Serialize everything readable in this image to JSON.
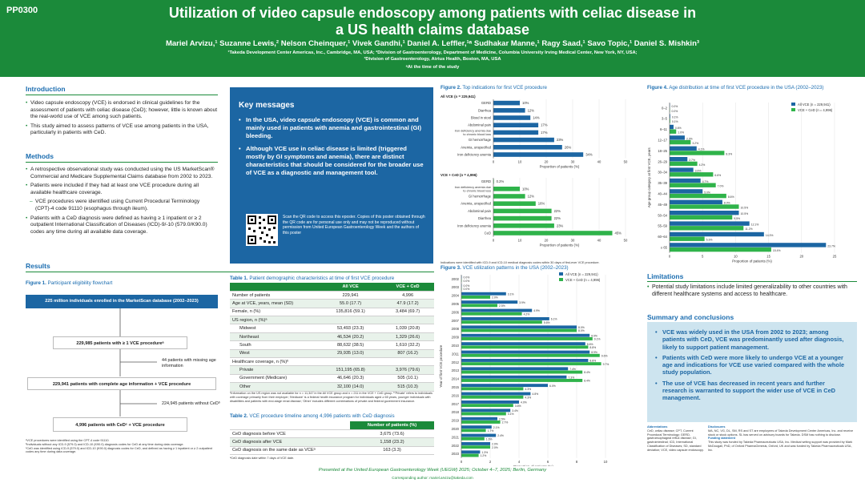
{
  "header": {
    "poster_id": "PP0300",
    "title_line1": "Utilization of video capsule endoscopy among patients with celiac disease in",
    "title_line2": "a US health claims database",
    "authors": "Mariel Arvizu,¹ Suzanne Lewis,² Nelson Cheinquer,¹ Vivek Gandhi,¹ Daniel A. Leffler,¹ᵃ Sudhakar Manne,¹ Ragy Saad,¹ Savo Topic,¹ Daniel S. Mishkin³",
    "aff1": "¹Takeda Development Center Americas, Inc., Cambridge, MA, USA; ²Division of Gastroenterology, Department of Medicine, Columbia University Irving Medical Center, New York, NY, USA;",
    "aff2": "³Division of Gastroenterology, Atrius Health, Boston, MA, USA",
    "aff3": "ᵃAt the time of the study"
  },
  "intro": {
    "heading": "Introduction",
    "b1": "Video capsule endoscopy (VCE) is endorsed in clinical guidelines for the assessment of patients with celiac disease (CeD); however, little is known about the real-world use of VCE among such patients.",
    "b2": "This study aimed to assess patterns of VCE use among patients in the USA, particularly in patients with CeD."
  },
  "methods": {
    "heading": "Methods",
    "b1": "A retrospective observational study was conducted using the US MarketScan® Commercial and Medicare Supplemental Claims database from 2002 to 2023.",
    "b2": "Patients were included if they had at least one VCE procedure during all available healthcare coverage.",
    "b3": "VCE procedures were identified using Current Procedural Terminology (CPT)-4 code 91110 (esophagus through ileum).",
    "b4": "Patients with a CeD diagnosis were defined as having ≥ 1 inpatient or ≥ 2 outpatient International Classification of Diseases (ICD)-9/-10 (579.0/K90.0) codes any time during all available data coverage."
  },
  "results": {
    "heading": "Results",
    "fig1_label": "Figure 1.",
    "fig1_title": "Participant eligibility flowchart",
    "box1": "225 million individuals enrolled in the MarketScan database (2002–2023)",
    "box2": "229,985 patients with ≥ 1 VCE procedureᵃ",
    "side1": "44 patients with missing age information",
    "box3": "229,941 patients with complete age information + VCE procedure",
    "side2": "224,945 patients without CeDᵇ",
    "box4": "4,996 patients with CeDᶜ + VCE procedure",
    "fn1": "ᵃVCE procedures were identified using the CPT-4 code 91110.",
    "fn2": "ᵇIndividuals without any ICD-9 (579.0) and ICD-10 (K90.0) diagnosis codes for CeD at any time during data coverage.",
    "fn3": "ᶜCeD was identified using ICD-9 (579.0) and ICD-10 (K90.0) diagnosis codes for CeD, and defined as having ≥ 1 inpatient or ≥ 2 outpatient codes any time during data coverage."
  },
  "key": {
    "heading": "Key messages",
    "b1": "In the USA, video capsule endoscopy (VCE) is common and mainly used in patients with anemia and gastrointestinal (GI) bleeding.",
    "b2": "Although VCE use in celiac disease is limited (triggered mostly by GI symptoms and anemia), there are distinct characteristics that should be considered for the broader use of VCE as a diagnostic and management tool.",
    "qr_text": "Scan the QR code to access this eposter. Copies of this poster obtained through the QR code are for personal use only and may not be reproduced without permission from United European Gastroenterology Week and the authors of this poster"
  },
  "table1": {
    "label": "Table 1.",
    "title": "Patient demographic characteristics at time of first VCE procedure",
    "headers": [
      "",
      "All VCE",
      "VCE + CeD"
    ],
    "rows": [
      [
        "Number of patients",
        "229,941",
        "4,996"
      ],
      [
        "Age at VCE, years, mean (SD)",
        "55.0 (17.7)",
        "47.9 (17.2)"
      ],
      [
        "Female, n (%)",
        "135,816 (59.1)",
        "3,484 (69.7)"
      ],
      [
        "US region, n (%)ᵃ",
        "",
        ""
      ],
      [
        "Midwest",
        "53,493 (23.3)",
        "1,039 (20.8)"
      ],
      [
        "Northeast",
        "46,534 (20.2)",
        "1,329 (26.6)"
      ],
      [
        "South",
        "88,632 (38.5)",
        "1,610 (32.2)"
      ],
      [
        "West",
        "29,935 (13.0)",
        "807 (16.2)"
      ],
      [
        "Healthcare coverage, n (%)ᵇ",
        "",
        ""
      ],
      [
        "Private",
        "151,195 (65.8)",
        "3,976 (79.6)"
      ],
      [
        "Government (Medicare)",
        "46,646 (20.3)",
        "505 (10.1)"
      ],
      [
        "Other",
        "32,100 (14.0)",
        "515 (10.3)"
      ]
    ],
    "fn": "ᵃInformation on the US region was not available for n = 11,347 in the All VCE group and n = 211 in the VCE + CeD group. ᵇ'Private' refers to individuals with coverage primarily from their employer; 'Medicare' is a federal health insurance program for individuals aged ≥ 65 years, younger individuals with disabilities and patients with end-stage renal disease; 'Other' includes different combinations of private and federal government insurance."
  },
  "table2": {
    "label": "Table 2.",
    "title": "VCE procedure timeline among 4,996 patients with CeD diagnosis",
    "header": "Number of patients (%)",
    "rows": [
      [
        "CeD diagnosis before VCE",
        "3,675 (73.6)"
      ],
      [
        "CeD diagnosis after VCE",
        "1,158 (23.2)"
      ],
      [
        "CeD diagnosis on the same date as VCEᵃ",
        "163 (3.3)"
      ]
    ],
    "fn": "ᵃCeD diagnosis date within 7 days of VCE date."
  },
  "fig2": {
    "label": "Figure 2.",
    "title": "Top indications for first VCE procedure",
    "panel1": "All VCE (n = 229,941)",
    "panel2": "VCE + CeD (n = 4,996)",
    "xlabel": "Proportion of patients (%)",
    "fn": "Indications were identified with ICD-9 and ICD-10 medical diagnosis codes within 30 days of first-ever VCE procedure."
  },
  "fig3": {
    "label": "Figure 3.",
    "title": "VCE utilization patterns in the USA (2002–2023)",
    "legend1": "All VCE (n = 229,941)",
    "legend2": "VCE + CeD (n = 4,996)",
    "xlabel": "Proportion of patients (%)",
    "ylabel": "Year of first VCE procedure"
  },
  "fig4": {
    "label": "Figure 4.",
    "title": "Age distribution at time of first VCE procedure in the USA (2002–2023)",
    "legend1": "All VCE (n = 229,941)",
    "legend2": "VCE + CeD (n = 4,996)",
    "xlabel": "Proportion of patients (%)",
    "ylabel": "Age group category at first VCE, years"
  },
  "limitations": {
    "heading": "Limitations",
    "b1": "Potential study limitations include limited generalizability to other countries with different healthcare systems and access to healthcare."
  },
  "summary": {
    "heading": "Summary and conclusions",
    "b1": "VCE was widely used in the USA from 2002 to 2023; among patients with CeD, VCE was predominantly used after diagnosis, likely to support patient management.",
    "b2": "Patients with CeD were more likely to undergo VCE at a younger age and indications for VCE use varied compared with the whole study population.",
    "b3": "The use of VCE has decreased in recent years and further research is warranted to support the wider use of VCE in CeD management."
  },
  "abbrev": {
    "heading": "Abbreviations",
    "text": "CeD, celiac disease; CPT, Current Procedural Terminology; GERD, gastroesophageal reflux disease; GI, gastrointestinal; ICD, International Classification of Diseases; SD, standard deviation; VCE, video capsule endoscopy."
  },
  "disclosures": {
    "heading": "Disclosures",
    "text": "MA, NC, VG, DL, SM, RS and ST are employees of Takeda Development Center Americas, Inc. and receive stock or stock options. SL has served on advisory boards for Takeda. DSM has nothing to disclose.",
    "funding_heading": "Funding statement",
    "funding": "This study was funded by Takeda Pharmaceuticals USA, Inc. Medical writing support was provided by Mark McDougall, PhD, of Oxford PharmaGenesis, Oxford, UK and was funded by Takeda Pharmaceuticals USA, Inc."
  },
  "footer": {
    "line1": "Presented at the United European Gastroenterology Week (UEGW) 2025; October 4–7, 2025; Berlin, Germany",
    "line2": "Corresponding author: mariel.arvizu@takeda.com"
  },
  "colors": {
    "green": "#1b8a3a",
    "blue": "#1c66a3",
    "light_green": "#2fb34a"
  },
  "chart_data": [
    {
      "type": "bar",
      "id": "fig2_all",
      "categories": [
        "GERD",
        "Diarrhea",
        "Blood in stool",
        "Abdominal pain",
        "Iron deficiency anemia due to chronic blood loss",
        "GI hemorrhage",
        "Anemia, unspecified",
        "Iron deficiency anemia"
      ],
      "values": [
        10,
        12,
        14,
        17,
        17,
        23,
        26,
        34
      ],
      "labels": [
        "10%",
        "12%",
        "14%",
        "17%",
        "17%",
        "23%",
        "26%",
        "34%"
      ],
      "xlim": [
        0,
        50
      ],
      "xticks": [
        0,
        10,
        20,
        30,
        40,
        50
      ]
    },
    {
      "type": "bar",
      "id": "fig2_ced",
      "categories": [
        "GERD",
        "Iron deficiency anemia due to chronic blood loss",
        "GI hemorrhage",
        "Anemia, unspecified",
        "Abdominal pain",
        "Diarrhea",
        "Iron deficiency anemia",
        "CeD"
      ],
      "values": [
        0.2,
        10,
        12,
        16,
        22,
        22,
        23,
        45
      ],
      "labels": [
        "0.2%",
        "10%",
        "12%",
        "16%",
        "22%",
        "22%",
        "23%",
        "45%"
      ],
      "xlim": [
        0,
        50
      ],
      "xticks": [
        0,
        10,
        20,
        30,
        40,
        50
      ]
    },
    {
      "type": "bar",
      "id": "fig3",
      "categories": [
        "2002",
        "2003",
        "2004",
        "2005",
        "2006",
        "2007",
        "2008",
        "2009",
        "2010",
        "2011",
        "2012",
        "2013",
        "2014",
        "2015",
        "2016",
        "2017",
        "2018",
        "2019",
        "2020",
        "2021",
        "2022",
        "2023"
      ],
      "series": [
        {
          "name": "All VCE (n = 229,941)",
          "values": [
            0.0,
            0.0,
            3.1,
            3.9,
            4.9,
            6.1,
            8.0,
            8.9,
            8.6,
            8.9,
            8.8,
            7.4,
            7.3,
            6.0,
            4.8,
            4.0,
            3.4,
            2.5,
            2.1,
            2.4,
            2.0,
            1.3
          ]
        },
        {
          "name": "VCE + CeD (n = 4,996)",
          "values": [
            0.0,
            0.0,
            2.0,
            2.5,
            4.2,
            5.6,
            8.0,
            9.1,
            8.8,
            9.6,
            9.7,
            8.4,
            8.4,
            4.3,
            4.3,
            3.6,
            3.1,
            2.7,
            1.7,
            1.6,
            2.0,
            1.2
          ]
        }
      ],
      "xlim": [
        0,
        10
      ],
      "xticks": [
        0,
        2,
        4,
        6,
        8,
        10
      ]
    },
    {
      "type": "bar",
      "id": "fig4",
      "categories": [
        "0–2",
        "3–5",
        "6–11",
        "12–17",
        "18–25",
        "26–29",
        "30–34",
        "35–39",
        "40–44",
        "45–49",
        "50–54",
        "55–59",
        "60–64",
        "≥ 65"
      ],
      "series": [
        {
          "name": "All VCE (n = 229,941)",
          "values": [
            0.0,
            0.1,
            0.6,
            2.3,
            4.1,
            2.7,
            3.6,
            4.7,
            5.0,
            8.0,
            10.5,
            12.1,
            14.3,
            23.7
          ]
        },
        {
          "name": "VCE + CeD (n = 4,996)",
          "values": [
            0.0,
            0.1,
            1.0,
            3.2,
            8.3,
            4.2,
            6.6,
            7.0,
            8.6,
            10.5,
            9.5,
            11.2,
            5.3,
            15.4
          ]
        }
      ],
      "xlim": [
        0,
        25
      ],
      "xticks": [
        0,
        5,
        10,
        15,
        20,
        25
      ]
    }
  ]
}
